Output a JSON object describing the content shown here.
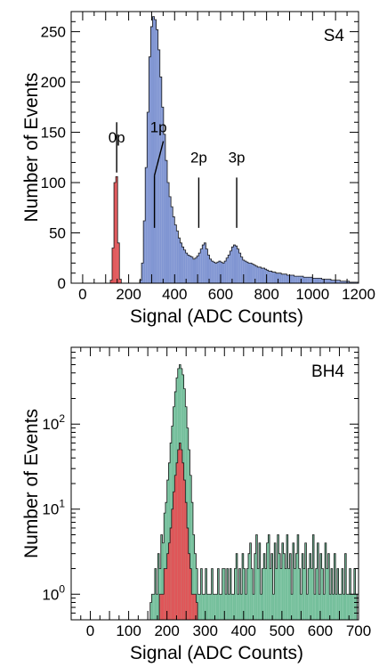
{
  "chart_data": [
    {
      "type": "histogram",
      "panel_label": "S4",
      "xlabel": "Signal (ADC Counts)",
      "ylabel": "Number of Events",
      "xlim": [
        -50,
        1200
      ],
      "ylim": [
        0,
        270
      ],
      "log_y": false,
      "grid": false,
      "x_ticks": [
        0,
        200,
        400,
        600,
        800,
        1000,
        1200
      ],
      "y_ticks": [
        0,
        50,
        100,
        150,
        200,
        250
      ],
      "bin_width": 8,
      "series": [
        {
          "color": "#8095d2",
          "x": [
            248,
            256,
            264,
            272,
            280,
            288,
            296,
            304,
            312,
            320,
            328,
            336,
            344,
            352,
            360,
            368,
            376,
            384,
            392,
            400,
            408,
            416,
            424,
            432,
            440,
            448,
            456,
            464,
            472,
            480,
            488,
            496,
            504,
            512,
            520,
            528,
            536,
            544,
            552,
            560,
            568,
            576,
            584,
            592,
            600,
            608,
            616,
            624,
            632,
            640,
            648,
            656,
            664,
            672,
            680,
            688,
            696,
            704,
            712,
            720,
            728,
            736,
            744,
            752,
            760,
            768,
            776,
            784,
            792,
            800,
            808,
            816,
            824,
            832,
            840,
            848,
            856,
            864,
            872,
            880,
            888,
            896,
            904,
            912,
            920,
            928,
            936,
            944,
            952,
            960,
            968,
            976,
            984,
            992,
            1000,
            1008,
            1016,
            1024,
            1032,
            1040,
            1048,
            1056,
            1064,
            1072,
            1080,
            1088,
            1096,
            1104,
            1112,
            1120,
            1128,
            1136,
            1144,
            1152,
            1160,
            1168,
            1176,
            1184,
            1192
          ],
          "values": [
            3,
            20,
            62,
            115,
            170,
            225,
            255,
            265,
            262,
            252,
            232,
            205,
            175,
            148,
            122,
            100,
            86,
            76,
            66,
            58,
            52,
            45,
            40,
            36,
            33,
            30,
            28,
            27,
            26,
            24,
            25,
            27,
            30,
            34,
            38,
            40,
            34,
            28,
            24,
            22,
            21,
            20,
            21,
            22,
            21,
            20,
            22,
            25,
            28,
            32,
            36,
            38,
            37,
            34,
            30,
            26,
            23,
            22,
            21,
            20,
            20,
            19,
            18,
            17,
            16,
            16,
            15,
            15,
            14,
            13,
            12,
            12,
            11,
            11,
            10,
            10,
            10,
            9,
            9,
            9,
            8,
            8,
            8,
            8,
            7,
            7,
            7,
            7,
            7,
            6,
            6,
            6,
            6,
            6,
            5,
            5,
            5,
            5,
            5,
            4,
            4,
            4,
            4,
            4,
            3,
            3,
            3,
            3,
            3,
            2,
            2,
            2,
            2,
            2,
            1,
            1,
            1,
            1,
            1
          ]
        },
        {
          "color": "#e05558",
          "x": [
            120,
            128,
            136,
            144,
            152,
            160
          ],
          "values": [
            3,
            35,
            100,
            106,
            40,
            4
          ]
        }
      ],
      "annotations": [
        {
          "text": "0p",
          "x": 148,
          "y": 140,
          "marker_y": [
            110,
            160
          ]
        },
        {
          "text": "1p",
          "x": 330,
          "y": 150,
          "marker_y": [
            55,
            110
          ]
        },
        {
          "text": "2p",
          "x": 505,
          "y": 120,
          "marker_y": [
            55,
            105
          ]
        },
        {
          "text": "3p",
          "x": 670,
          "y": 120,
          "marker_y": [
            55,
            105
          ]
        }
      ]
    },
    {
      "type": "histogram",
      "panel_label": "BH4",
      "xlabel": "Signal (ADC Counts)",
      "ylabel": "Number of Events",
      "xlim": [
        -50,
        700
      ],
      "ylim": [
        0.5,
        800
      ],
      "log_y": true,
      "grid": false,
      "x_ticks": [
        0,
        100,
        200,
        300,
        400,
        500,
        600,
        700
      ],
      "y_ticks": [
        1,
        10,
        100
      ],
      "y_tick_labels": [
        {
          "base": "10",
          "exp": "0"
        },
        {
          "base": "10",
          "exp": "1"
        },
        {
          "base": "10",
          "exp": "2"
        }
      ],
      "bin_width": 4,
      "series": [
        {
          "color": "#74bf9b",
          "x": [
            156,
            160,
            164,
            168,
            172,
            176,
            180,
            184,
            188,
            192,
            196,
            200,
            204,
            208,
            212,
            216,
            220,
            224,
            228,
            232,
            236,
            240,
            244,
            248,
            252,
            256,
            260,
            264,
            268,
            272,
            276,
            280,
            284,
            288,
            292,
            296,
            300,
            304,
            308,
            312,
            316,
            320,
            324,
            328,
            332,
            336,
            340,
            344,
            348,
            352,
            356,
            360,
            364,
            368,
            372,
            376,
            380,
            384,
            388,
            392,
            396,
            400,
            404,
            408,
            412,
            416,
            420,
            424,
            428,
            432,
            436,
            440,
            444,
            448,
            452,
            456,
            460,
            464,
            468,
            472,
            476,
            480,
            484,
            488,
            492,
            496,
            500,
            504,
            508,
            512,
            516,
            520,
            524,
            528,
            532,
            536,
            540,
            544,
            548,
            552,
            556,
            560,
            564,
            568,
            572,
            576,
            580,
            584,
            588,
            592,
            596,
            600,
            604,
            608,
            612,
            616,
            620,
            624,
            628,
            632,
            636,
            640,
            644,
            648,
            652,
            656,
            660,
            664,
            668,
            672,
            676,
            680,
            684,
            688,
            692
          ],
          "values": [
            0.8,
            1,
            1,
            2,
            1,
            3,
            2,
            5,
            4,
            9,
            12,
            22,
            35,
            60,
            95,
            160,
            240,
            350,
            450,
            500,
            450,
            380,
            260,
            160,
            90,
            50,
            25,
            12,
            5,
            3,
            2,
            1,
            1,
            2,
            1,
            1,
            2,
            1,
            1,
            1,
            2,
            1,
            1,
            1,
            2,
            1,
            1,
            2,
            2,
            1,
            2,
            1,
            2,
            1,
            1,
            2,
            3,
            1,
            2,
            1,
            3,
            2,
            1,
            2,
            3,
            4,
            2,
            1,
            3,
            5,
            2,
            4,
            1,
            2,
            3,
            2,
            4,
            5,
            2,
            3,
            1,
            4,
            2,
            5,
            3,
            2,
            4,
            3,
            2,
            5,
            2,
            3,
            1,
            4,
            2,
            3,
            5,
            2,
            1,
            3,
            2,
            4,
            1,
            2,
            3,
            2,
            5,
            1,
            2,
            4,
            1,
            3,
            2,
            1,
            4,
            2,
            3,
            1,
            2,
            1,
            3,
            1,
            2,
            1,
            1,
            2,
            1,
            3,
            1,
            1,
            2,
            1,
            1,
            2,
            1
          ]
        },
        {
          "color": "#e05558",
          "x": [
            180,
            184,
            188,
            192,
            196,
            200,
            204,
            208,
            212,
            216,
            220,
            224,
            228,
            232,
            236,
            240,
            244,
            248,
            252,
            256,
            260,
            264,
            268,
            272,
            276
          ],
          "values": [
            1,
            1,
            1,
            2,
            2,
            3,
            4,
            6,
            10,
            16,
            25,
            35,
            50,
            60,
            50,
            35,
            22,
            12,
            6,
            3,
            2,
            1,
            1,
            1,
            0.8
          ]
        }
      ]
    }
  ]
}
